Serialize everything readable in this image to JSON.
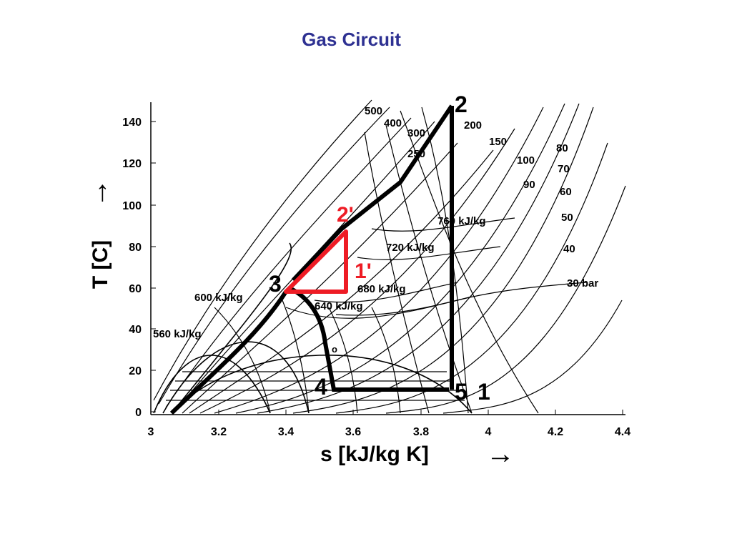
{
  "title": "Gas Circuit",
  "colors": {
    "title": "#2e3192",
    "cycle": "#000000",
    "red_cycle": "#ee1c25"
  },
  "axes": {
    "x_title": "s [kJ/kg K]",
    "y_title": "T [C]",
    "x_ticks": [
      "3",
      "3.2",
      "3.4",
      "3.6",
      "3.8",
      "4",
      "4.2",
      "4.4"
    ],
    "y_ticks": [
      "0",
      "20",
      "40",
      "60",
      "80",
      "100",
      "120",
      "140"
    ],
    "x_arrow": "→",
    "y_arrow": "→"
  },
  "enthalpy_labels": [
    "560 kJ/kg",
    "600 kJ/kg",
    "640 kJ/kg",
    "680 kJ/kg",
    "720 kJ/kg",
    "760 kJ/kg"
  ],
  "pressure_labels": [
    "500",
    "400",
    "300",
    "250",
    "200",
    "150",
    "100",
    "90",
    "80",
    "70",
    "60",
    "50",
    "40",
    "30 bar"
  ],
  "state_labels": [
    "1",
    "2",
    "3",
    "4",
    "5"
  ],
  "red_labels": [
    "2'",
    "1'"
  ],
  "marker": "o",
  "chart_data": {
    "type": "diagram",
    "xlim": [
      3,
      4.4
    ],
    "ylim": [
      0,
      150
    ],
    "cycle": [
      {
        "label": "1",
        "s": 3.89,
        "T": 12
      },
      {
        "label": "2",
        "s": 3.89,
        "T": 147
      },
      {
        "label": "3",
        "s": 3.4,
        "T": 58
      },
      {
        "label": "4",
        "s": 3.54,
        "T": 12
      },
      {
        "label": "5",
        "s": 3.88,
        "T": 12
      }
    ],
    "red_cycle": [
      {
        "label": "3",
        "s": 3.4,
        "T": 58
      },
      {
        "label": "2'",
        "s": 3.58,
        "T": 87
      },
      {
        "label": "1'",
        "s": 3.58,
        "T": 58
      }
    ]
  }
}
